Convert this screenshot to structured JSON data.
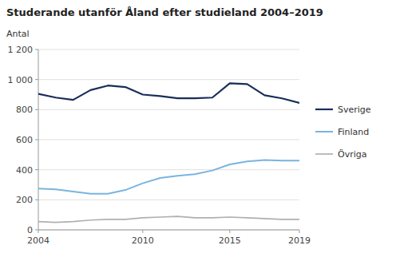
{
  "chart_data": {
    "type": "line",
    "title": "Studerande utanför Åland efter studieland 2004–2019",
    "ylabel": "Antal",
    "x": [
      2004,
      2005,
      2006,
      2007,
      2008,
      2009,
      2010,
      2011,
      2012,
      2013,
      2014,
      2015,
      2016,
      2017,
      2018,
      2019
    ],
    "series": [
      {
        "name": "Sverige",
        "color": "#1a2e5a",
        "values": [
          905,
          880,
          865,
          930,
          960,
          950,
          900,
          890,
          875,
          875,
          880,
          975,
          970,
          895,
          875,
          845
        ]
      },
      {
        "name": "Finland",
        "color": "#7ab4e0",
        "values": [
          275,
          270,
          255,
          240,
          240,
          265,
          310,
          345,
          360,
          370,
          395,
          435,
          455,
          465,
          460,
          460
        ]
      },
      {
        "name": "Övriga",
        "color": "#b0b0b0",
        "values": [
          55,
          50,
          55,
          65,
          70,
          70,
          80,
          85,
          90,
          80,
          80,
          85,
          80,
          75,
          70,
          70
        ]
      }
    ],
    "xlim": [
      2004,
      2019
    ],
    "xticks": [
      2004,
      2010,
      2015,
      2019
    ],
    "ylim": [
      0,
      1200
    ],
    "yticks": [
      0,
      200,
      400,
      600,
      800,
      {
        "value": 1000,
        "label": "1 000"
      },
      {
        "value": 1200,
        "label": "1 200"
      }
    ],
    "grid": true,
    "legend": "right"
  }
}
